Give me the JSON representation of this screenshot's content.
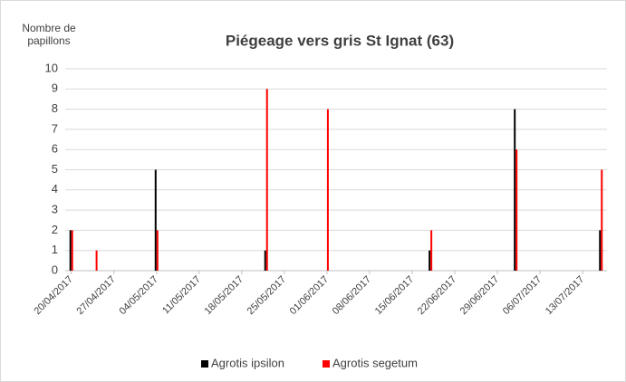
{
  "chart_data": {
    "type": "bar",
    "title": "Piégeage vers gris St Ignat (63)",
    "y_label": "Nombre de papillons",
    "x": [
      "2017-04-20",
      "2017-04-24",
      "2017-05-04",
      "2017-05-22",
      "2017-06-01",
      "2017-06-18",
      "2017-07-02",
      "2017-07-16"
    ],
    "series": [
      {
        "name": "Agrotis ipsilon",
        "color": "#000000",
        "values": [
          2,
          0,
          5,
          1,
          0,
          1,
          8,
          2
        ]
      },
      {
        "name": "Agrotis segetum",
        "color": "#ff0000",
        "values": [
          2,
          1,
          2,
          9,
          8,
          2,
          6,
          5
        ]
      }
    ],
    "xlim": [
      "2017-04-19",
      "2017-07-17"
    ],
    "xticks": [
      {
        "value": "2017-04-20",
        "label": "20/04/2017"
      },
      {
        "value": "2017-04-27",
        "label": "27/04/2017"
      },
      {
        "value": "2017-05-04",
        "label": "04/05/2017"
      },
      {
        "value": "2017-05-11",
        "label": "11/05/2017"
      },
      {
        "value": "2017-05-18",
        "label": "18/05/2017"
      },
      {
        "value": "2017-05-25",
        "label": "25/05/2017"
      },
      {
        "value": "2017-06-01",
        "label": "01/06/2017"
      },
      {
        "value": "2017-06-08",
        "label": "08/06/2017"
      },
      {
        "value": "2017-06-15",
        "label": "15/06/2017"
      },
      {
        "value": "2017-06-22",
        "label": "22/06/2017"
      },
      {
        "value": "2017-06-29",
        "label": "29/06/2017"
      },
      {
        "value": "2017-07-06",
        "label": "06/07/2017"
      },
      {
        "value": "2017-07-13",
        "label": "13/07/2017"
      }
    ],
    "ylim": [
      0,
      10
    ],
    "yticks": [
      0,
      1,
      2,
      3,
      4,
      5,
      6,
      7,
      8,
      9,
      10
    ],
    "grid": true,
    "legend": "bottom"
  }
}
